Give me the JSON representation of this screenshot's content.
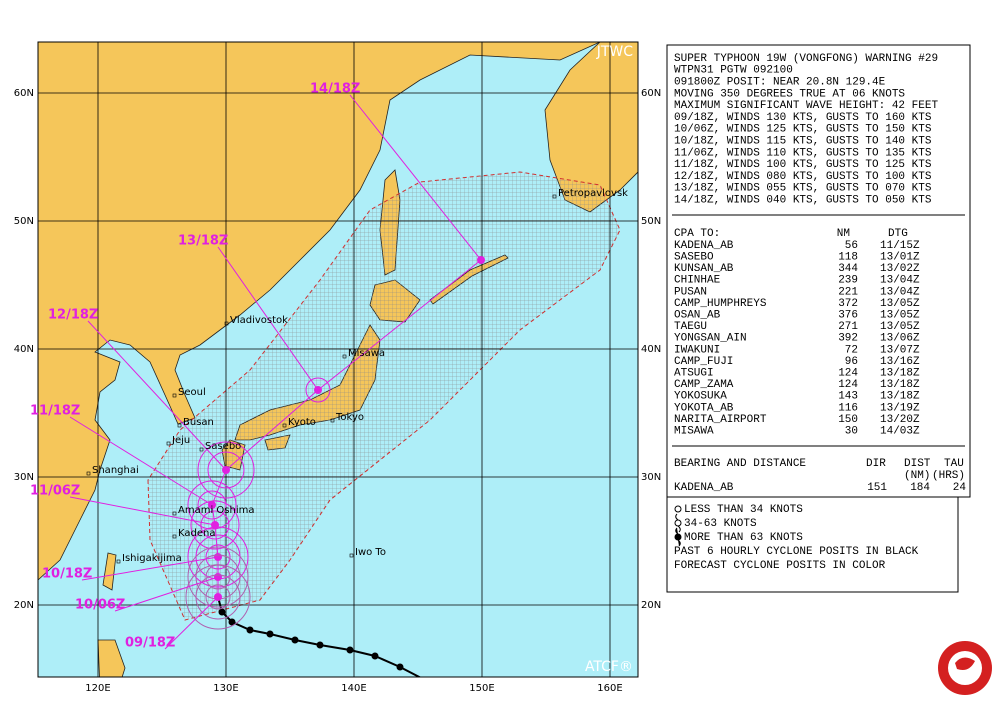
{
  "map": {
    "source_label": "JTWC",
    "model_label": "ATCF®",
    "lat_labels": [
      "60N",
      "50N",
      "40N",
      "30N",
      "20N"
    ],
    "lon_labels": [
      "120E",
      "130E",
      "140E",
      "150E",
      "160E"
    ],
    "places": [
      "Petropavlovsk",
      "Vladivostok",
      "Misawa",
      "Seoul",
      "Busan",
      "Kyoto",
      "Tokyo",
      "Jeju",
      "Sasebo",
      "Shanghai",
      "Amami Oshima",
      "Kadena",
      "Ishigakijima",
      "Iwo To"
    ],
    "forecast_labels": [
      "14/18Z",
      "13/18Z",
      "12/18Z",
      "11/18Z",
      "11/06Z",
      "10/18Z",
      "10/06Z",
      "09/18Z"
    ]
  },
  "warning": {
    "lines": [
      "SUPER TYPHOON 19W (VONGFONG) WARNING #29",
      "WTPN31 PGTW 092100",
      "091800Z POSIT: NEAR 20.8N 129.4E",
      "MOVING 350 DEGREES TRUE AT 06 KNOTS",
      "MAXIMUM SIGNIFICANT WAVE HEIGHT: 42 FEET",
      "09/18Z, WINDS 130 KTS, GUSTS TO 160 KTS",
      "10/06Z, WINDS 125 KTS, GUSTS TO 150 KTS",
      "10/18Z, WINDS 115 KTS, GUSTS TO 140 KTS",
      "11/06Z, WINDS 110 KTS, GUSTS TO 135 KTS",
      "11/18Z, WINDS 100 KTS, GUSTS TO 125 KTS",
      "12/18Z, WINDS 080 KTS, GUSTS TO 100 KTS",
      "13/18Z, WINDS 055 KTS, GUSTS TO 070 KTS",
      "14/18Z, WINDS 040 KTS, GUSTS TO 050 KTS"
    ]
  },
  "cpa": {
    "header": [
      "CPA TO:",
      "NM",
      "DTG"
    ],
    "rows": [
      [
        "KADENA_AB",
        "56",
        "11/15Z"
      ],
      [
        "SASEBO",
        "118",
        "13/01Z"
      ],
      [
        "KUNSAN_AB",
        "344",
        "13/02Z"
      ],
      [
        "CHINHAE",
        "239",
        "13/04Z"
      ],
      [
        "PUSAN",
        "221",
        "13/04Z"
      ],
      [
        "CAMP_HUMPHREYS",
        "372",
        "13/05Z"
      ],
      [
        "OSAN_AB",
        "376",
        "13/05Z"
      ],
      [
        "TAEGU",
        "271",
        "13/05Z"
      ],
      [
        "YONGSAN_AIN",
        "392",
        "13/06Z"
      ],
      [
        "IWAKUNI",
        "72",
        "13/07Z"
      ],
      [
        "CAMP_FUJI",
        "96",
        "13/16Z"
      ],
      [
        "ATSUGI",
        "124",
        "13/18Z"
      ],
      [
        "CAMP_ZAMA",
        "124",
        "13/18Z"
      ],
      [
        "YOKOSUKA",
        "143",
        "13/18Z"
      ],
      [
        "YOKOTA_AB",
        "116",
        "13/19Z"
      ],
      [
        "NARITA_AIRPORT",
        "150",
        "13/20Z"
      ],
      [
        "MISAWA",
        "30",
        "14/03Z"
      ]
    ]
  },
  "bearing": {
    "header": [
      "BEARING AND DISTANCE",
      "DIR",
      "DIST",
      "TAU"
    ],
    "units": [
      "(NM)",
      "(HRS)"
    ],
    "row": [
      "KADENA_AB",
      "151",
      "184",
      "24"
    ]
  },
  "legend": [
    "LESS THAN 34 KNOTS",
    "34-63 KNOTS",
    "MORE THAN 63 KNOTS",
    "PAST 6 HOURLY CYCLONE POSITS IN BLACK",
    "FORECAST CYCLONE POSITS IN COLOR"
  ]
}
